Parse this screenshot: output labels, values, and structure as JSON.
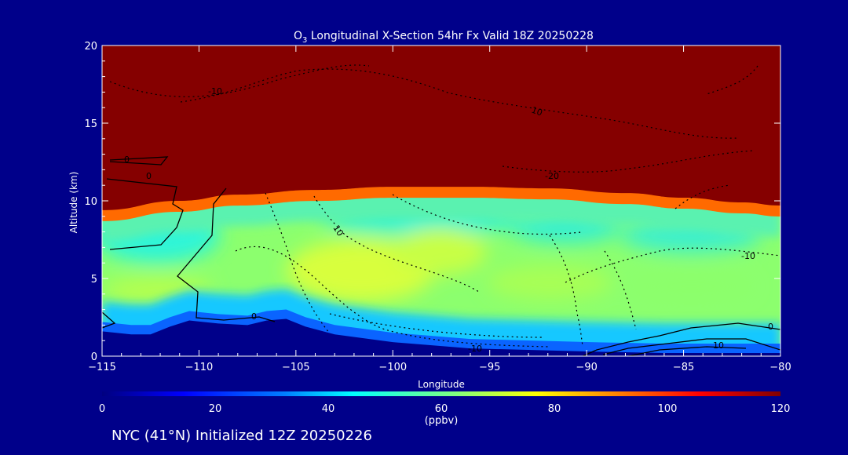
{
  "chart_data": {
    "type": "heatmap",
    "title": "O3 Longitudinal X-Section 54hr  Fx Valid 18Z 20250228",
    "title_parts": {
      "pre": "O",
      "sub": "3",
      "post": " Longitudinal X-Section 54hr  Fx Valid 18Z 20250228"
    },
    "xlabel": "Longitude",
    "ylabel": "Altitude (km)",
    "xlim": [
      -115,
      -80
    ],
    "ylim": [
      0,
      20
    ],
    "x_ticks": [
      -115,
      -110,
      -105,
      -100,
      -95,
      -90,
      -85,
      -80
    ],
    "x_tick_labels": [
      "−115",
      "−110",
      "−105",
      "−100",
      "−95",
      "−90",
      "−85",
      "−80"
    ],
    "y_ticks": [
      0,
      5,
      10,
      15,
      20
    ],
    "y_tick_labels": [
      "0",
      "5",
      "10",
      "15",
      "20"
    ],
    "colorbar": {
      "range": [
        0,
        120
      ],
      "ticks": [
        0,
        20,
        40,
        60,
        80,
        100,
        120
      ],
      "tick_labels": [
        "0",
        "20",
        "40",
        "60",
        "80",
        "100",
        "120"
      ],
      "unit": "(ppbv)",
      "colors": [
        "#000080",
        "#0000ff",
        "#0080ff",
        "#00ffff",
        "#80ff80",
        "#ffff00",
        "#ff8000",
        "#ff0000",
        "#800000"
      ]
    },
    "field": {
      "tropopause_height_km": [
        [
          -115,
          9.4
        ],
        [
          -111,
          10.0
        ],
        [
          -108,
          10.4
        ],
        [
          -104,
          10.7
        ],
        [
          -100,
          10.9
        ],
        [
          -96,
          10.9
        ],
        [
          -92,
          10.8
        ],
        [
          -88,
          10.5
        ],
        [
          -85,
          10.2
        ],
        [
          -82,
          9.9
        ],
        [
          -80,
          9.7
        ]
      ],
      "stratosphere_ppbv": 120,
      "lower_troposphere_ppbv": 30,
      "mid_troposphere_ppbv": 52,
      "upper_troposphere_ppbv": 42,
      "max_mid_troposphere": {
        "lon": -101,
        "alt_km": 6,
        "ppbv": 62
      }
    },
    "terrain_km": [
      [
        -115,
        1.6
      ],
      [
        -113.5,
        1.4
      ],
      [
        -112.5,
        1.4
      ],
      [
        -111.5,
        1.9
      ],
      [
        -110.5,
        2.3
      ],
      [
        -109,
        2.1
      ],
      [
        -107.5,
        2.0
      ],
      [
        -106.5,
        2.3
      ],
      [
        -105.5,
        2.4
      ],
      [
        -104.5,
        1.9
      ],
      [
        -103,
        1.4
      ],
      [
        -100,
        0.9
      ],
      [
        -96,
        0.5
      ],
      [
        -90,
        0.3
      ],
      [
        -86,
        0.2
      ],
      [
        -82,
        0.2
      ],
      [
        -80,
        0.2
      ]
    ],
    "contour_labels": [
      "-10",
      "10",
      "0",
      "0",
      "-20",
      "10",
      "0",
      "-10",
      "-10",
      "10",
      "0"
    ]
  },
  "footer": {
    "text": "NYC (41°N) Initialized 12Z 20250226"
  }
}
